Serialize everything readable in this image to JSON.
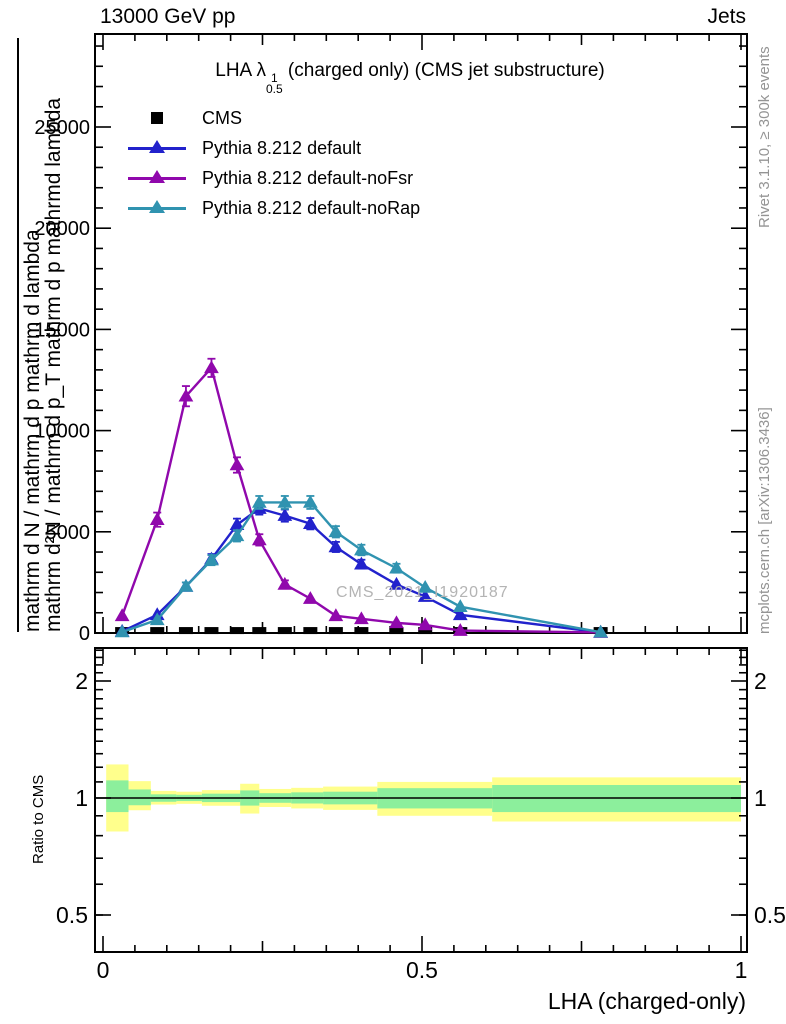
{
  "header": {
    "left": "13000 GeV pp",
    "right": "Jets"
  },
  "title": {
    "prefix": "LHA ",
    "lambda": "λ",
    "sup": "1",
    "sub": "0.5",
    "suffix": " (charged only) (CMS jet substructure)"
  },
  "legend": {
    "items": [
      {
        "label": "CMS",
        "color": "#000000",
        "marker": "square"
      },
      {
        "label": "Pythia 8.212 default",
        "color": "#2222cc",
        "marker": "triangle-line"
      },
      {
        "label": "Pythia 8.212 default-noFsr",
        "color": "#9008ac",
        "marker": "triangle-line"
      },
      {
        "label": "Pythia 8.212 default-noRap",
        "color": "#3093b0",
        "marker": "triangle-line"
      }
    ]
  },
  "axes": {
    "y_title_line1": "mathrm d²N / mathrm d p_T mathrm d p mathrmd lambda",
    "y_title_line2": "mathrm d N / mathrm d p mathrm d lambda",
    "x_label": "LHA (charged-only)",
    "ratio_label": "Ratio to CMS"
  },
  "notes": {
    "rivet": "Rivet 3.1.10, ≥ 300k events",
    "mcplots": "mcplots.cern.ch [arXiv:1306.3436]",
    "watermark": "CMS_2021_I1920187"
  },
  "chart_data": {
    "type": "line",
    "title": "LHA lambda^1_0.5 (charged only) (CMS jet substructure)",
    "xlabel": "LHA (charged-only)",
    "ylabel": "mathrm d²N / mathrm d p_T mathrm d lambda",
    "xlim": [
      0,
      1.005
    ],
    "ylim": [
      0,
      29600
    ],
    "x_ticks": [
      {
        "v": 0,
        "label": "0"
      },
      {
        "v": 0.5,
        "label": "0.5"
      },
      {
        "v": 1,
        "label": "1"
      }
    ],
    "x_minor_step": 0.05,
    "x_medium_ticks": [
      0.25,
      0.75
    ],
    "y_major_ticks": [
      {
        "v": 0,
        "label": "0"
      },
      {
        "v": 5000,
        "label": "5000"
      },
      {
        "v": 10000,
        "label": "10000"
      },
      {
        "v": 15000,
        "label": "15000"
      },
      {
        "v": 20000,
        "label": "20000"
      },
      {
        "v": 25000,
        "label": "25000"
      }
    ],
    "y_minor_step": 1000,
    "grid": false,
    "legend_position": "top-left-inside",
    "x": [
      0.03,
      0.085,
      0.13,
      0.17,
      0.21,
      0.245,
      0.285,
      0.325,
      0.365,
      0.405,
      0.46,
      0.505,
      0.56,
      0.78
    ],
    "series": [
      {
        "name": "CMS",
        "marker": "square",
        "color": "#000000",
        "draw": "markers",
        "values": [
          120,
          120,
          120,
          120,
          120,
          120,
          120,
          120,
          120,
          120,
          120,
          120,
          120,
          120
        ]
      },
      {
        "name": "Pythia 8.212 default",
        "marker": "triangle",
        "color": "#2222cc",
        "draw": "line-markers",
        "values": [
          80,
          900,
          2300,
          3650,
          5350,
          6150,
          5800,
          5400,
          4250,
          3400,
          2400,
          1800,
          900,
          30
        ],
        "errors": [
          50,
          120,
          200,
          250,
          300,
          300,
          300,
          280,
          250,
          220,
          180,
          150,
          100,
          20
        ]
      },
      {
        "name": "Pythia 8.212 default-noFsr",
        "marker": "triangle",
        "color": "#9008ac",
        "draw": "line-markers",
        "values": [
          850,
          5600,
          11700,
          13100,
          8300,
          4600,
          2400,
          1700,
          850,
          700,
          500,
          400,
          120,
          30
        ],
        "errors": [
          140,
          350,
          500,
          450,
          380,
          280,
          200,
          160,
          110,
          100,
          80,
          70,
          40,
          20
        ]
      },
      {
        "name": "Pythia 8.212 default-noRap",
        "marker": "triangle",
        "color": "#3093b0",
        "draw": "line-markers",
        "values": [
          50,
          650,
          2300,
          3600,
          4800,
          6450,
          6450,
          6450,
          5000,
          4100,
          3200,
          2250,
          1300,
          40
        ],
        "errors": [
          40,
          110,
          200,
          250,
          280,
          320,
          320,
          320,
          280,
          260,
          220,
          190,
          130,
          20
        ]
      }
    ],
    "ratio": {
      "ylabel": "Ratio to CMS",
      "scale": "log2",
      "ylim": [
        0.4,
        2.43
      ],
      "ticks": [
        {
          "v": 0.5,
          "label": "0.5"
        },
        {
          "v": 1,
          "label": "1"
        },
        {
          "v": 2,
          "label": "2"
        }
      ],
      "minor_ticks": [
        0.5,
        0.6,
        0.7,
        0.8,
        0.9,
        1.1,
        1.2,
        1.3,
        1.4,
        1.5,
        1.6,
        1.7,
        1.8,
        1.9,
        2.1,
        2.2,
        2.3,
        2.4
      ],
      "reference_line": 1,
      "band_colors": {
        "yellow": "#ffff8c",
        "green": "#8cef9c"
      },
      "bands": [
        {
          "x0": 0.005,
          "x1": 0.04,
          "yellow": [
            0.82,
            1.22
          ],
          "green": [
            0.92,
            1.11
          ]
        },
        {
          "x0": 0.04,
          "x1": 0.075,
          "yellow": [
            0.93,
            1.105
          ],
          "green": [
            0.958,
            1.052
          ]
        },
        {
          "x0": 0.075,
          "x1": 0.115,
          "yellow": [
            0.962,
            1.043
          ],
          "green": [
            0.978,
            1.022
          ]
        },
        {
          "x0": 0.115,
          "x1": 0.155,
          "yellow": [
            0.966,
            1.038
          ],
          "green": [
            0.982,
            1.019
          ]
        },
        {
          "x0": 0.155,
          "x1": 0.215,
          "yellow": [
            0.955,
            1.048
          ],
          "green": [
            0.976,
            1.026
          ]
        },
        {
          "x0": 0.215,
          "x1": 0.245,
          "yellow": [
            0.912,
            1.088
          ],
          "green": [
            0.956,
            1.046
          ]
        },
        {
          "x0": 0.245,
          "x1": 0.295,
          "yellow": [
            0.948,
            1.055
          ],
          "green": [
            0.972,
            1.029
          ]
        },
        {
          "x0": 0.295,
          "x1": 0.345,
          "yellow": [
            0.94,
            1.062
          ],
          "green": [
            0.968,
            1.034
          ]
        },
        {
          "x0": 0.345,
          "x1": 0.43,
          "yellow": [
            0.932,
            1.07
          ],
          "green": [
            0.963,
            1.038
          ]
        },
        {
          "x0": 0.43,
          "x1": 0.61,
          "yellow": [
            0.9,
            1.1
          ],
          "green": [
            0.94,
            1.06
          ]
        },
        {
          "x0": 0.61,
          "x1": 1.0,
          "yellow": [
            0.87,
            1.13
          ],
          "green": [
            0.92,
            1.08
          ]
        }
      ]
    }
  }
}
